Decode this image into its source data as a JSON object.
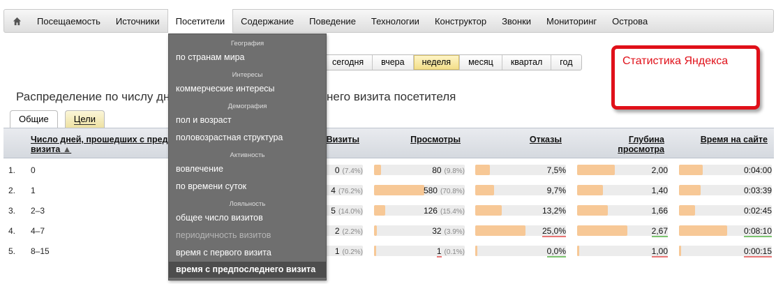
{
  "nav": {
    "items": [
      "Посещаемость",
      "Источники",
      "Посетители",
      "Содержание",
      "Поведение",
      "Технологии",
      "Конструктор",
      "Звонки",
      "Мониторинг",
      "Острова"
    ],
    "active_index": 2,
    "home_icon": "home-icon"
  },
  "periods": {
    "items": [
      "сегодня",
      "вчера",
      "неделя",
      "месяц",
      "квартал",
      "год"
    ],
    "active_index": 2
  },
  "annotation": {
    "text": "Статистика Яндекса",
    "color": "#e01019"
  },
  "page": {
    "title_start": "Распределение по числу дн",
    "title_end": "него визита посетителя"
  },
  "tabs": [
    "Общие",
    "Цели"
  ],
  "table": {
    "headers": {
      "dim": "Число дней, прошедших с пред визита",
      "sort_arrow": "▲",
      "visits": "Визиты",
      "views": "Просмотры",
      "bounces": "Отказы",
      "depth_l1": "Глубина",
      "depth_l2": "просмотра",
      "time": "Время на сайте"
    },
    "rows": [
      {
        "num": "1.",
        "label": "0",
        "visits_tail": "0",
        "visits_pct": "(7.4%)",
        "views": "80",
        "views_pct": "(9.8%)",
        "views_frac": 0.14,
        "bounces": "7,5%",
        "bounces_frac": 0.3,
        "depth": "2,00",
        "depth_frac": 0.75,
        "time": "0:04:00",
        "time_frac": 0.46
      },
      {
        "num": "2.",
        "label": "1",
        "visits_tail": "4",
        "visits_pct": "(76.2%)",
        "views": "580",
        "views_pct": "(70.8%)",
        "views_frac": 1.0,
        "bounces": "9,7%",
        "bounces_frac": 0.38,
        "depth": "1,40",
        "depth_frac": 0.52,
        "time": "0:03:39",
        "time_frac": 0.42
      },
      {
        "num": "3.",
        "label": "2–3",
        "visits_tail": "5",
        "visits_pct": "(14.0%)",
        "views": "126",
        "views_pct": "(15.4%)",
        "views_frac": 0.22,
        "bounces": "13,2%",
        "bounces_frac": 0.53,
        "depth": "1,66",
        "depth_frac": 0.62,
        "time": "0:02:45",
        "time_frac": 0.32
      },
      {
        "num": "4.",
        "label": "4–7",
        "visits_tail": "2",
        "visits_pct": "(2.2%)",
        "views": "32",
        "views_pct": "(3.9%)",
        "views_frac": 0.06,
        "bounces": "25,0%",
        "bounces_frac": 1.0,
        "depth": "2,67",
        "depth_frac": 1.0,
        "time": "0:08:10",
        "time_frac": 0.95
      },
      {
        "num": "5.",
        "label": "8–15",
        "visits_tail": "1",
        "visits_pct": "(0.2%)",
        "views": "1",
        "views_pct": "(0.1%)",
        "views_frac": 0.02,
        "bounces": "0,0%",
        "bounces_frac": 0.0,
        "depth": "1,00",
        "depth_frac": 0.0,
        "time": "0:00:15",
        "time_frac": 0.02
      }
    ]
  },
  "dropdown": {
    "sections": [
      {
        "title": "География",
        "items": [
          "по странам мира"
        ]
      },
      {
        "title": "Интересы",
        "items": [
          "коммерческие интересы"
        ]
      },
      {
        "title": "Демография",
        "items": [
          "пол и возраст",
          "половозрастная структура"
        ]
      },
      {
        "title": "Активность",
        "items": [
          "вовлечение",
          "по времени суток"
        ]
      },
      {
        "title": "Лояльность",
        "items": [
          "общее число визитов",
          "периодичность визитов",
          "время с первого визита",
          "время с предпоследнего визита"
        ]
      }
    ],
    "dim_item": "периодичность визитов",
    "selected_item": "время с предпоследнего визита"
  },
  "colors": {
    "bar": "#f7c896",
    "highlight_red": "#e87575",
    "highlight_green": "#7bc36f",
    "menu_bg": "#6f6f6f"
  }
}
